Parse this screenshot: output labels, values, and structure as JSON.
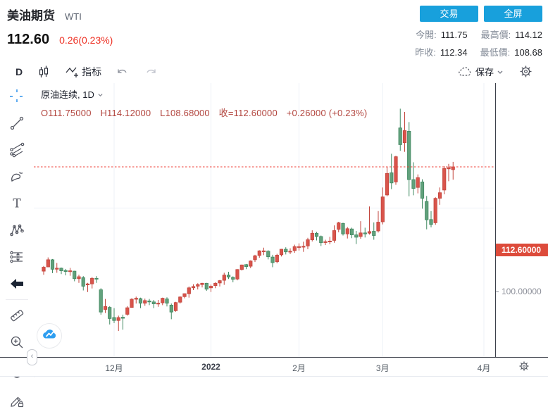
{
  "header": {
    "title": "美油期货",
    "symbol_code": "WTI",
    "price": "112.60",
    "change": "0.26(0.23%)",
    "buttons": {
      "trade": "交易",
      "fullscreen": "全屏"
    },
    "stats": [
      {
        "label": "今開:",
        "value": "111.75"
      },
      {
        "label": "最高價:",
        "value": "114.12"
      },
      {
        "label": "昨收:",
        "value": "112.34"
      },
      {
        "label": "最低價:",
        "value": "108.68"
      }
    ]
  },
  "toolbar": {
    "interval": "D",
    "indicators_label": "指标",
    "save_label": "保存"
  },
  "legend": {
    "series_title": "原油连续, 1D",
    "ohlc": {
      "open": "O111.75000",
      "high": "H114.12000",
      "low": "L108.68000",
      "close": "收=112.60000",
      "change": "+0.26000 (+0.23%)"
    }
  },
  "axes": {
    "price_tag": "112.60000",
    "price_tick": "100.00000"
  },
  "sidebar_tools": [
    "crosshair",
    "trend-line",
    "fib-gann",
    "brush",
    "text",
    "xabcd-pattern",
    "long-short-position",
    "arrow-marker",
    "measure-ruler",
    "zoom-in",
    "magnet",
    "drawing-mode-lock"
  ],
  "colors": {
    "accent_blue": "#18a0dc",
    "change_red": "#ee3124",
    "ohlc_text": "#b2453e",
    "price_tag_bg": "#dd4b3b",
    "dashed_line": "#ef4038"
  },
  "chart_data": {
    "type": "candlestick",
    "title": "原油连续, 1D (WTI crude oil continuous, daily)",
    "color_convention": "red = up day, green = down day",
    "colors": {
      "up": "#d9544b",
      "up_border": "#c2453c",
      "down": "#62a17c",
      "down_border": "#3f8860"
    },
    "y_axis": {
      "visible_ticks": [
        100.0
      ],
      "current_price": 112.6,
      "approx_visible_range": [
        61,
        133
      ],
      "grid": "horizontal line at 100 only"
    },
    "x_axis": {
      "tick_labels": [
        "12月",
        "2022",
        "2月",
        "3月",
        "4月"
      ],
      "tick_indices": [
        16,
        38,
        58,
        77,
        100
      ],
      "grid": "vertical line at each month tick"
    },
    "legend_position": "top-left inside plot",
    "candles": [
      [
        80.7,
        82.3,
        79.6,
        81.9
      ],
      [
        82.0,
        84.9,
        81.9,
        84.2
      ],
      [
        84.2,
        84.4,
        80.1,
        81.3
      ],
      [
        81.3,
        83.2,
        80.2,
        81.6
      ],
      [
        81.6,
        81.8,
        79.8,
        80.8
      ],
      [
        80.9,
        81.4,
        79.4,
        80.6
      ],
      [
        80.7,
        81.7,
        79.3,
        80.8
      ],
      [
        80.7,
        80.8,
        77.6,
        78.4
      ],
      [
        78.4,
        79.6,
        77.1,
        79.0
      ],
      [
        78.7,
        79.2,
        74.8,
        76.1
      ],
      [
        76.5,
        77.1,
        74.3,
        76.8
      ],
      [
        76.8,
        78.9,
        75.4,
        78.5
      ],
      [
        78.5,
        79.2,
        77.1,
        78.4
      ],
      [
        75.0,
        75.5,
        67.4,
        68.2
      ],
      [
        69.0,
        72.2,
        67.9,
        69.9
      ],
      [
        69.6,
        70.0,
        64.4,
        66.2
      ],
      [
        66.5,
        69.4,
        64.8,
        65.6
      ],
      [
        65.6,
        67.1,
        62.4,
        66.5
      ],
      [
        66.6,
        67.4,
        62.8,
        66.3
      ],
      [
        67.5,
        70.0,
        67.1,
        69.5
      ],
      [
        69.6,
        72.4,
        69.5,
        72.1
      ],
      [
        72.1,
        72.9,
        70.8,
        72.4
      ],
      [
        72.3,
        72.6,
        69.4,
        70.9
      ],
      [
        70.9,
        72.3,
        70.1,
        71.7
      ],
      [
        71.6,
        72.2,
        70.3,
        71.3
      ],
      [
        71.3,
        71.9,
        69.4,
        70.7
      ],
      [
        70.8,
        71.9,
        69.8,
        70.9
      ],
      [
        71.0,
        72.6,
        70.3,
        72.4
      ],
      [
        72.2,
        72.7,
        69.9,
        70.9
      ],
      [
        70.3,
        70.8,
        66.0,
        68.2
      ],
      [
        68.6,
        71.3,
        68.3,
        71.1
      ],
      [
        71.2,
        73.0,
        70.8,
        72.8
      ],
      [
        72.9,
        73.9,
        72.4,
        73.8
      ],
      [
        73.8,
        76.0,
        72.6,
        75.6
      ],
      [
        75.6,
        76.7,
        74.9,
        76.0
      ],
      [
        76.1,
        77.0,
        75.1,
        76.6
      ],
      [
        76.6,
        77.1,
        75.7,
        77.0
      ],
      [
        77.0,
        77.1,
        74.7,
        75.2
      ],
      [
        75.6,
        76.6,
        74.3,
        76.1
      ],
      [
        76.3,
        77.3,
        75.5,
        77.0
      ],
      [
        77.1,
        78.0,
        76.0,
        77.8
      ],
      [
        77.9,
        80.2,
        76.5,
        79.5
      ],
      [
        79.5,
        80.5,
        78.3,
        78.9
      ],
      [
        78.8,
        79.1,
        77.3,
        78.2
      ],
      [
        78.3,
        81.3,
        77.9,
        81.2
      ],
      [
        81.2,
        82.7,
        80.9,
        82.6
      ],
      [
        82.7,
        82.9,
        81.3,
        82.1
      ],
      [
        82.2,
        84.0,
        81.6,
        83.8
      ],
      [
        84.2,
        85.7,
        83.5,
        85.4
      ],
      [
        85.5,
        87.1,
        84.8,
        86.9
      ],
      [
        86.9,
        87.9,
        85.6,
        86.9
      ],
      [
        86.8,
        87.1,
        84.3,
        85.1
      ],
      [
        85.0,
        85.7,
        81.9,
        83.3
      ],
      [
        83.6,
        86.0,
        83.1,
        85.6
      ],
      [
        85.7,
        87.5,
        85.2,
        87.4
      ],
      [
        87.4,
        88.0,
        85.8,
        86.6
      ],
      [
        86.6,
        87.7,
        85.9,
        86.8
      ],
      [
        87.0,
        88.8,
        86.3,
        88.2
      ],
      [
        88.2,
        89.2,
        87.0,
        88.2
      ],
      [
        88.3,
        89.7,
        86.6,
        88.3
      ],
      [
        88.4,
        90.9,
        87.4,
        90.3
      ],
      [
        90.3,
        93.2,
        89.8,
        92.3
      ],
      [
        92.3,
        92.7,
        90.1,
        91.3
      ],
      [
        91.3,
        91.6,
        88.4,
        89.4
      ],
      [
        89.5,
        90.3,
        88.7,
        89.7
      ],
      [
        89.7,
        91.2,
        88.9,
        89.9
      ],
      [
        90.1,
        94.7,
        89.4,
        93.1
      ],
      [
        93.5,
        95.8,
        92.6,
        95.5
      ],
      [
        95.3,
        95.5,
        91.6,
        92.1
      ],
      [
        92.1,
        94.2,
        90.7,
        93.7
      ],
      [
        93.6,
        94.0,
        90.8,
        91.8
      ],
      [
        91.8,
        93.0,
        89.0,
        91.1
      ],
      [
        91.3,
        96.0,
        90.6,
        92.4
      ],
      [
        92.4,
        94.0,
        91.0,
        92.1
      ],
      [
        92.3,
        100.5,
        91.9,
        92.8
      ],
      [
        92.9,
        95.6,
        90.3,
        91.6
      ],
      [
        93.0,
        99.1,
        92.5,
        95.7
      ],
      [
        95.8,
        106.3,
        95.0,
        103.4
      ],
      [
        104.0,
        112.5,
        103.6,
        110.6
      ],
      [
        110.8,
        116.6,
        105.8,
        107.7
      ],
      [
        108.0,
        116.0,
        107.1,
        115.7
      ],
      [
        124.5,
        130.4,
        117.5,
        119.4
      ],
      [
        120.0,
        129.4,
        117.2,
        123.7
      ],
      [
        123.5,
        126.3,
        103.6,
        108.7
      ],
      [
        108.7,
        114.0,
        103.9,
        106.0
      ],
      [
        106.3,
        110.3,
        104.5,
        109.3
      ],
      [
        108.0,
        108.8,
        99.8,
        103.0
      ],
      [
        102.0,
        103.7,
        93.5,
        96.4
      ],
      [
        96.5,
        99.1,
        94.1,
        95.0
      ],
      [
        95.5,
        103.3,
        94.9,
        102.98
      ],
      [
        103.0,
        106.3,
        101.0,
        104.7
      ],
      [
        105.5,
        112.8,
        104.2,
        112.1
      ],
      [
        112.0,
        113.5,
        108.2,
        112.34
      ],
      [
        111.75,
        114.12,
        108.68,
        112.6
      ]
    ]
  }
}
